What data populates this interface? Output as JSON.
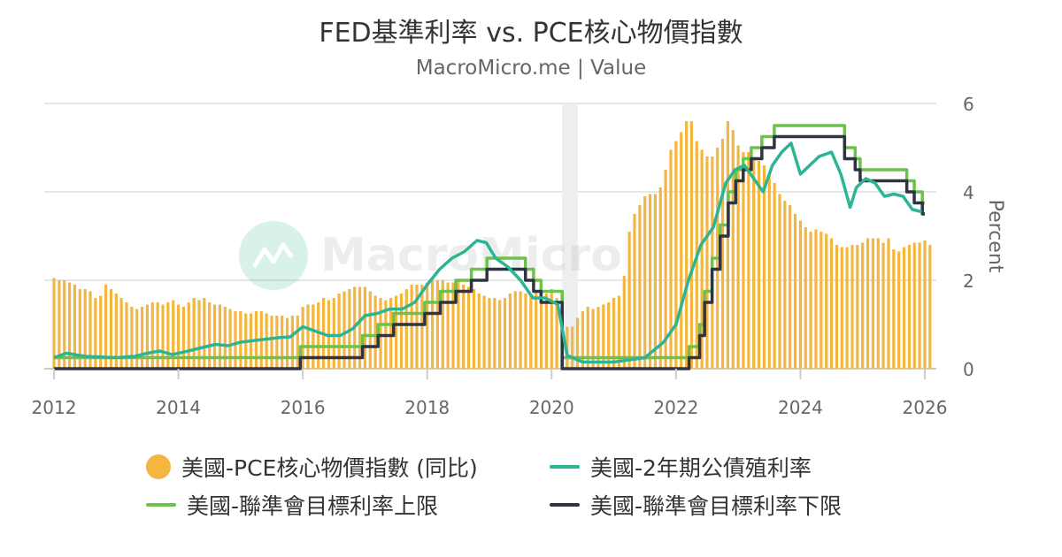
{
  "watermark": "MacroMicro",
  "legend": [
    "美國-PCE核心物價指數 (同比)",
    "美國-2年期公債殖利率",
    "美國-聯準會目標利率上限",
    "美國-聯準會目標利率下限"
  ],
  "chart_data": {
    "type": "bar",
    "title": "FED基準利率 vs. PCE核心物價指數",
    "subtitle": "MacroMicro.me | Value",
    "ylabel": "Percent",
    "xlabel": "",
    "xlim": [
      2012,
      2026
    ],
    "ylim": [
      0,
      6
    ],
    "x_ticks": [
      "2012",
      "2014",
      "2016",
      "2018",
      "2020",
      "2022",
      "2024",
      "2026"
    ],
    "y_ticks": [
      "0",
      "2",
      "4",
      "6"
    ],
    "grid": true,
    "legend_position": "bottom",
    "highlight_band": [
      2020.17,
      2020.42
    ],
    "colors": {
      "pce": "#f4b63f",
      "y2": "#2bb594",
      "upper": "#6cc24a",
      "lower": "#2f3444",
      "band": "#eeeeee"
    },
    "series": [
      {
        "name": "美國-PCE核心物價指數 (同比)",
        "type": "bar",
        "x_start": 2012.0,
        "step": 0.08333,
        "values": [
          2.05,
          2.0,
          2.0,
          1.95,
          1.9,
          1.8,
          1.8,
          1.75,
          1.6,
          1.65,
          1.9,
          1.8,
          1.7,
          1.6,
          1.5,
          1.4,
          1.35,
          1.4,
          1.45,
          1.5,
          1.5,
          1.45,
          1.5,
          1.55,
          1.45,
          1.4,
          1.5,
          1.6,
          1.55,
          1.6,
          1.5,
          1.45,
          1.45,
          1.4,
          1.35,
          1.3,
          1.3,
          1.25,
          1.25,
          1.3,
          1.3,
          1.25,
          1.2,
          1.2,
          1.2,
          1.15,
          1.2,
          1.2,
          1.4,
          1.45,
          1.45,
          1.5,
          1.6,
          1.55,
          1.6,
          1.7,
          1.75,
          1.8,
          1.85,
          1.85,
          1.85,
          1.75,
          1.65,
          1.6,
          1.55,
          1.6,
          1.65,
          1.7,
          1.8,
          1.9,
          1.9,
          1.9,
          1.95,
          2.0,
          2.0,
          2.0,
          1.95,
          1.95,
          2.0,
          1.9,
          1.85,
          1.8,
          1.7,
          1.65,
          1.6,
          1.6,
          1.55,
          1.6,
          1.7,
          1.75,
          1.75,
          1.7,
          1.65,
          1.75,
          1.8,
          1.7,
          1.8,
          1.6,
          1.0,
          0.95,
          0.95,
          1.15,
          1.3,
          1.4,
          1.35,
          1.4,
          1.45,
          1.5,
          1.6,
          1.65,
          2.1,
          3.1,
          3.5,
          3.7,
          3.9,
          3.95,
          3.95,
          4.1,
          4.5,
          4.95,
          5.15,
          5.35,
          5.6,
          5.6,
          5.15,
          4.95,
          4.8,
          4.8,
          5.0,
          5.2,
          5.6,
          5.4,
          5.05,
          4.9,
          4.9,
          4.75,
          4.7,
          4.6,
          4.35,
          4.2,
          3.95,
          3.8,
          3.7,
          3.5,
          3.35,
          3.2,
          3.1,
          3.15,
          3.1,
          3.05,
          2.95,
          2.8,
          2.75,
          2.75,
          2.8,
          2.8,
          2.85,
          2.95,
          2.95,
          2.95,
          2.85,
          2.95,
          2.7,
          2.65,
          2.75,
          2.8,
          2.85,
          2.85,
          2.9,
          2.8
        ]
      },
      {
        "name": "美國-2年期公債殖利率",
        "type": "line",
        "points": [
          [
            2012.0,
            0.25
          ],
          [
            2012.2,
            0.35
          ],
          [
            2012.5,
            0.28
          ],
          [
            2013.0,
            0.25
          ],
          [
            2013.3,
            0.28
          ],
          [
            2013.5,
            0.35
          ],
          [
            2013.7,
            0.4
          ],
          [
            2013.9,
            0.32
          ],
          [
            2014.1,
            0.38
          ],
          [
            2014.3,
            0.45
          ],
          [
            2014.6,
            0.55
          ],
          [
            2014.8,
            0.52
          ],
          [
            2015.0,
            0.6
          ],
          [
            2015.3,
            0.65
          ],
          [
            2015.6,
            0.7
          ],
          [
            2015.8,
            0.72
          ],
          [
            2016.0,
            0.95
          ],
          [
            2016.2,
            0.85
          ],
          [
            2016.4,
            0.75
          ],
          [
            2016.6,
            0.75
          ],
          [
            2016.8,
            0.9
          ],
          [
            2017.0,
            1.2
          ],
          [
            2017.2,
            1.25
          ],
          [
            2017.4,
            1.35
          ],
          [
            2017.6,
            1.35
          ],
          [
            2017.8,
            1.5
          ],
          [
            2018.0,
            1.9
          ],
          [
            2018.2,
            2.25
          ],
          [
            2018.4,
            2.5
          ],
          [
            2018.6,
            2.65
          ],
          [
            2018.8,
            2.9
          ],
          [
            2018.95,
            2.85
          ],
          [
            2019.1,
            2.5
          ],
          [
            2019.3,
            2.3
          ],
          [
            2019.5,
            2.0
          ],
          [
            2019.7,
            1.6
          ],
          [
            2019.9,
            1.6
          ],
          [
            2020.1,
            1.45
          ],
          [
            2020.25,
            0.3
          ],
          [
            2020.5,
            0.15
          ],
          [
            2021.0,
            0.15
          ],
          [
            2021.5,
            0.25
          ],
          [
            2021.8,
            0.6
          ],
          [
            2022.0,
            1.0
          ],
          [
            2022.2,
            2.0
          ],
          [
            2022.4,
            2.8
          ],
          [
            2022.6,
            3.2
          ],
          [
            2022.8,
            4.2
          ],
          [
            2022.95,
            4.5
          ],
          [
            2023.1,
            4.6
          ],
          [
            2023.25,
            4.3
          ],
          [
            2023.4,
            4.0
          ],
          [
            2023.55,
            4.6
          ],
          [
            2023.7,
            4.9
          ],
          [
            2023.85,
            5.1
          ],
          [
            2024.0,
            4.4
          ],
          [
            2024.15,
            4.6
          ],
          [
            2024.3,
            4.8
          ],
          [
            2024.5,
            4.9
          ],
          [
            2024.65,
            4.4
          ],
          [
            2024.8,
            3.65
          ],
          [
            2024.9,
            4.1
          ],
          [
            2025.05,
            4.3
          ],
          [
            2025.2,
            4.2
          ],
          [
            2025.35,
            3.9
          ],
          [
            2025.5,
            3.95
          ],
          [
            2025.65,
            3.9
          ],
          [
            2025.8,
            3.6
          ],
          [
            2025.95,
            3.55
          ]
        ]
      },
      {
        "name": "美國-聯準會目標利率上限",
        "type": "step",
        "points": [
          [
            2012.0,
            0.25
          ],
          [
            2015.96,
            0.5
          ],
          [
            2016.96,
            0.75
          ],
          [
            2017.21,
            1.0
          ],
          [
            2017.46,
            1.25
          ],
          [
            2017.96,
            1.5
          ],
          [
            2018.21,
            1.75
          ],
          [
            2018.46,
            2.0
          ],
          [
            2018.71,
            2.25
          ],
          [
            2018.96,
            2.5
          ],
          [
            2019.58,
            2.25
          ],
          [
            2019.71,
            2.0
          ],
          [
            2019.83,
            1.75
          ],
          [
            2020.17,
            0.25
          ],
          [
            2022.21,
            0.5
          ],
          [
            2022.38,
            1.0
          ],
          [
            2022.46,
            1.75
          ],
          [
            2022.58,
            2.5
          ],
          [
            2022.71,
            3.25
          ],
          [
            2022.84,
            4.0
          ],
          [
            2022.96,
            4.5
          ],
          [
            2023.08,
            4.75
          ],
          [
            2023.21,
            5.0
          ],
          [
            2023.38,
            5.25
          ],
          [
            2023.58,
            5.5
          ],
          [
            2024.71,
            5.0
          ],
          [
            2024.88,
            4.75
          ],
          [
            2024.96,
            4.5
          ],
          [
            2025.71,
            4.25
          ],
          [
            2025.83,
            4.0
          ],
          [
            2025.96,
            3.75
          ],
          [
            2026.0,
            3.75
          ]
        ]
      },
      {
        "name": "美國-聯準會目標利率下限",
        "type": "step",
        "points": [
          [
            2012.0,
            0.0
          ],
          [
            2015.96,
            0.25
          ],
          [
            2016.96,
            0.5
          ],
          [
            2017.21,
            0.75
          ],
          [
            2017.46,
            1.0
          ],
          [
            2017.96,
            1.25
          ],
          [
            2018.21,
            1.5
          ],
          [
            2018.46,
            1.75
          ],
          [
            2018.71,
            2.0
          ],
          [
            2018.96,
            2.25
          ],
          [
            2019.58,
            2.0
          ],
          [
            2019.71,
            1.75
          ],
          [
            2019.83,
            1.5
          ],
          [
            2020.17,
            0.0
          ],
          [
            2022.21,
            0.25
          ],
          [
            2022.38,
            0.75
          ],
          [
            2022.46,
            1.5
          ],
          [
            2022.58,
            2.25
          ],
          [
            2022.71,
            3.0
          ],
          [
            2022.84,
            3.75
          ],
          [
            2022.96,
            4.25
          ],
          [
            2023.08,
            4.5
          ],
          [
            2023.21,
            4.75
          ],
          [
            2023.38,
            5.0
          ],
          [
            2023.58,
            5.25
          ],
          [
            2024.71,
            4.75
          ],
          [
            2024.88,
            4.5
          ],
          [
            2024.96,
            4.25
          ],
          [
            2025.71,
            4.0
          ],
          [
            2025.83,
            3.75
          ],
          [
            2025.96,
            3.5
          ],
          [
            2026.0,
            3.5
          ]
        ]
      }
    ]
  }
}
